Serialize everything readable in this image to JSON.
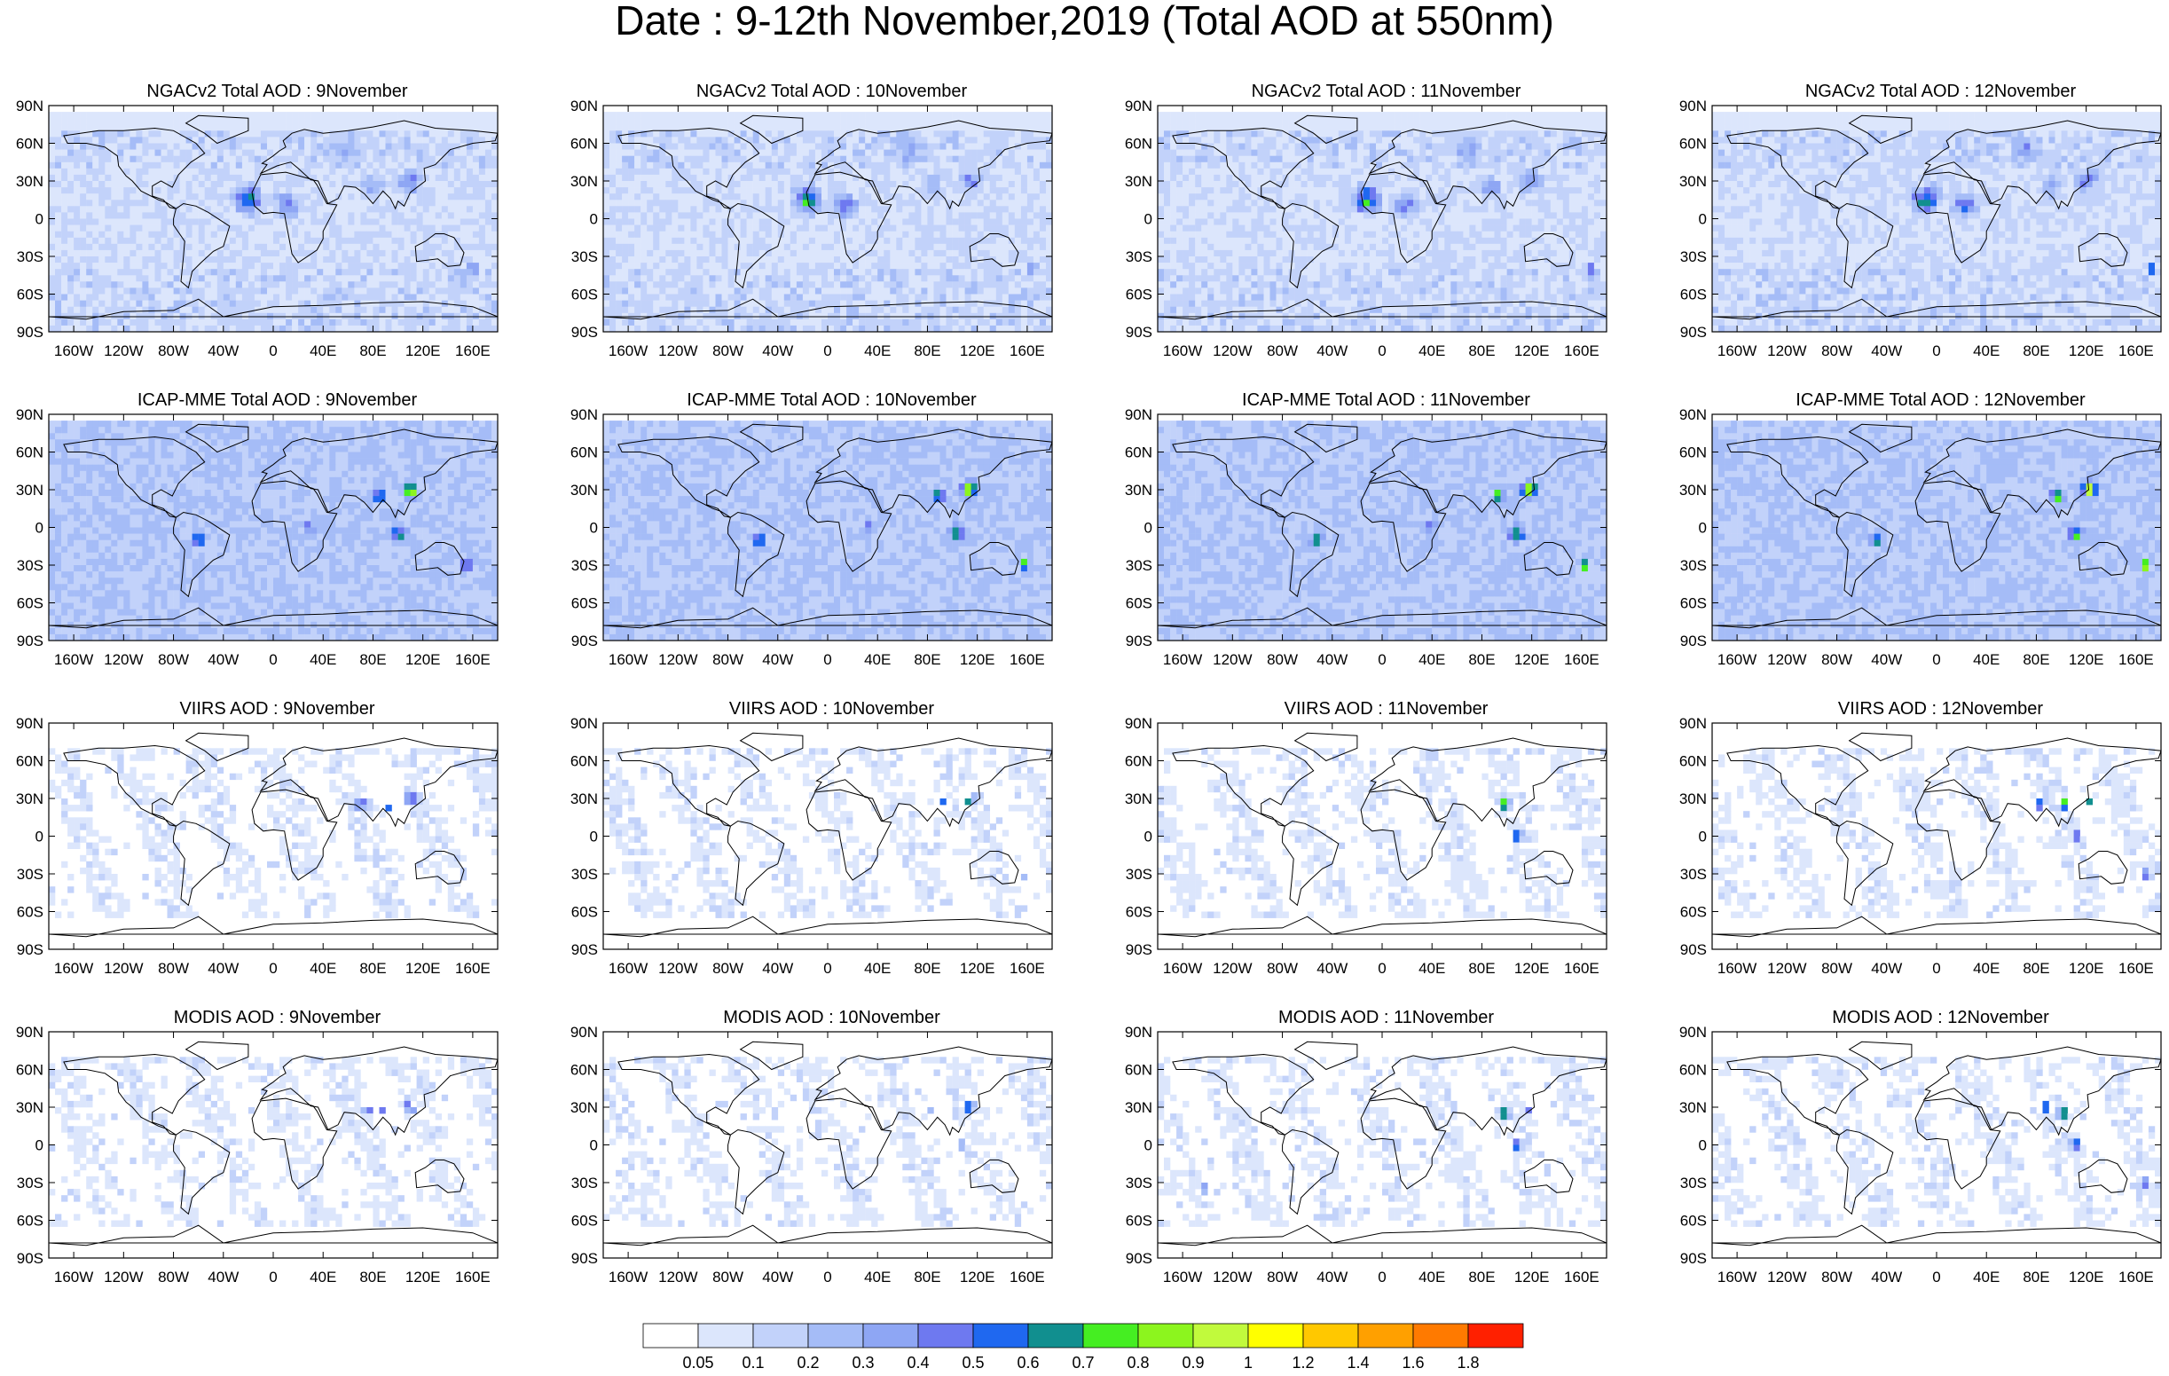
{
  "title": "Date : 9-12th November,2019 (Total AOD at 550nm)",
  "lat_ticks": [
    "90N",
    "60N",
    "30N",
    "0",
    "30S",
    "60S",
    "90S"
  ],
  "lon_ticks": [
    "160W",
    "120W",
    "80W",
    "40W",
    "0",
    "40E",
    "80E",
    "120E",
    "160E"
  ],
  "panels": [
    {
      "title": "NGACv2 Total AOD : 9November",
      "model": "ngac",
      "day": 9
    },
    {
      "title": "NGACv2 Total AOD : 10November",
      "model": "ngac",
      "day": 10
    },
    {
      "title": "NGACv2 Total AOD : 11November",
      "model": "ngac",
      "day": 11
    },
    {
      "title": "NGACv2 Total AOD : 12November",
      "model": "ngac",
      "day": 12
    },
    {
      "title": "ICAP-MME Total AOD : 9November",
      "model": "icap",
      "day": 9
    },
    {
      "title": "ICAP-MME Total AOD : 10November",
      "model": "icap",
      "day": 10
    },
    {
      "title": "ICAP-MME Total AOD : 11November",
      "model": "icap",
      "day": 11
    },
    {
      "title": "ICAP-MME Total AOD : 12November",
      "model": "icap",
      "day": 12
    },
    {
      "title": "VIIRS AOD : 9November",
      "model": "viirs",
      "day": 9
    },
    {
      "title": "VIIRS AOD : 10November",
      "model": "viirs",
      "day": 10
    },
    {
      "title": "VIIRS AOD : 11November",
      "model": "viirs",
      "day": 11
    },
    {
      "title": "VIIRS AOD : 12November",
      "model": "viirs",
      "day": 12
    },
    {
      "title": "MODIS AOD : 9November",
      "model": "modis",
      "day": 9
    },
    {
      "title": "MODIS AOD : 10November",
      "model": "modis",
      "day": 10
    },
    {
      "title": "MODIS AOD : 11November",
      "model": "modis",
      "day": 11
    },
    {
      "title": "MODIS AOD : 12November",
      "model": "modis",
      "day": 12
    }
  ],
  "colorbar": {
    "labels": [
      "0.05",
      "0.1",
      "0.2",
      "0.3",
      "0.4",
      "0.5",
      "0.6",
      "0.7",
      "0.8",
      "0.9",
      "1",
      "1.2",
      "1.4",
      "1.6",
      "1.8"
    ],
    "colors": [
      "#ffffff",
      "#dce6fc",
      "#c2d2fa",
      "#a5bcf7",
      "#8ea6f4",
      "#6e79f0",
      "#1f68f0",
      "#118f8f",
      "#45ee22",
      "#8cf51e",
      "#c1fa3c",
      "#ffff00",
      "#ffc800",
      "#ffa000",
      "#ff7a00",
      "#ff2000"
    ]
  },
  "chart_data": {
    "type": "heatmap",
    "grid": "4 rows x 4 columns of global maps",
    "rows": [
      "NGACv2 Total AOD",
      "ICAP-MME Total AOD",
      "VIIRS AOD",
      "MODIS AOD"
    ],
    "columns": [
      "9November",
      "10November",
      "11November",
      "12November"
    ],
    "x_range": [
      -180,
      180
    ],
    "y_range": [
      -90,
      90
    ],
    "colorbar_levels": [
      0.05,
      0.1,
      0.2,
      0.3,
      0.4,
      0.5,
      0.6,
      0.7,
      0.8,
      0.9,
      1,
      1.2,
      1.4,
      1.6,
      1.8
    ]
  }
}
